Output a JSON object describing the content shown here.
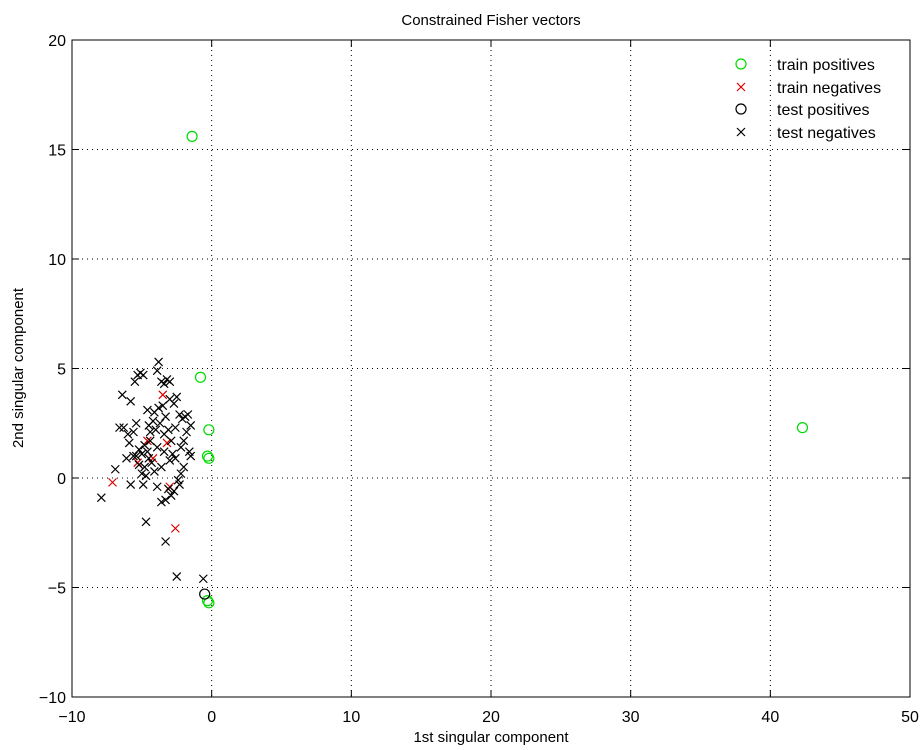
{
  "chart_data": {
    "type": "scatter",
    "title": "Constrained Fisher vectors",
    "xlabel": "1st singular component",
    "ylabel": "2nd singular component",
    "xlim": [
      -10,
      50
    ],
    "ylim": [
      -10,
      20
    ],
    "xticks": [
      -10,
      0,
      10,
      20,
      30,
      40,
      50
    ],
    "yticks": [
      -10,
      -5,
      0,
      5,
      10,
      15,
      20
    ],
    "xtick_labels": [
      "−10",
      "0",
      "10",
      "20",
      "30",
      "40",
      "50"
    ],
    "ytick_labels": [
      "−10",
      "−5",
      "0",
      "5",
      "10",
      "15",
      "20"
    ],
    "grid": true,
    "legend_position": "top-right",
    "series": [
      {
        "name": "train positives",
        "marker": "circle",
        "color": "#00dd00",
        "points": [
          [
            -1.4,
            15.6
          ],
          [
            -0.8,
            4.6
          ],
          [
            -0.2,
            2.2
          ],
          [
            -0.3,
            1.0
          ],
          [
            -0.2,
            0.9
          ],
          [
            -0.3,
            -5.6
          ],
          [
            -0.2,
            -5.7
          ],
          [
            42.3,
            2.3
          ]
        ]
      },
      {
        "name": "train negatives",
        "marker": "x",
        "color": "#dd0000",
        "points": [
          [
            -7.1,
            -0.2
          ],
          [
            -3.5,
            3.8
          ],
          [
            -4.6,
            1.7
          ],
          [
            -3.2,
            1.6
          ],
          [
            -2.6,
            -2.3
          ],
          [
            -3.0,
            -0.4
          ],
          [
            -5.3,
            0.7
          ],
          [
            -4.2,
            0.9
          ]
        ]
      },
      {
        "name": "test positives",
        "marker": "circle",
        "color": "#000000",
        "points": [
          [
            -0.5,
            -5.3
          ]
        ]
      },
      {
        "name": "test negatives",
        "marker": "x",
        "color": "#000000",
        "points": [
          [
            -7.9,
            -0.9
          ],
          [
            -6.9,
            0.4
          ],
          [
            -6.6,
            2.3
          ],
          [
            -6.3,
            2.3
          ],
          [
            -6.4,
            3.8
          ],
          [
            -6.0,
            2.0
          ],
          [
            -5.9,
            1.6
          ],
          [
            -5.8,
            3.5
          ],
          [
            -5.6,
            2.1
          ],
          [
            -5.5,
            4.4
          ],
          [
            -5.3,
            4.7
          ],
          [
            -5.1,
            4.8
          ],
          [
            -4.9,
            4.7
          ],
          [
            -5.4,
            1.0
          ],
          [
            -5.2,
            0.6
          ],
          [
            -5.0,
            0.2
          ],
          [
            -4.9,
            -0.3
          ],
          [
            -4.7,
            0.1
          ],
          [
            -4.6,
            1.2
          ],
          [
            -4.4,
            2.1
          ],
          [
            -4.2,
            2.6
          ],
          [
            -4.1,
            3.0
          ],
          [
            -3.9,
            4.9
          ],
          [
            -3.8,
            5.3
          ],
          [
            -3.6,
            4.4
          ],
          [
            -3.4,
            4.3
          ],
          [
            -3.2,
            4.5
          ],
          [
            -3.0,
            4.4
          ],
          [
            -3.8,
            3.2
          ],
          [
            -3.5,
            3.3
          ],
          [
            -3.3,
            2.8
          ],
          [
            -3.1,
            2.2
          ],
          [
            -2.9,
            1.7
          ],
          [
            -2.7,
            3.4
          ],
          [
            -2.5,
            3.7
          ],
          [
            -2.3,
            2.9
          ],
          [
            -2.1,
            2.7
          ],
          [
            -1.9,
            2.8
          ],
          [
            -1.7,
            2.9
          ],
          [
            -1.8,
            2.1
          ],
          [
            -1.6,
            1.2
          ],
          [
            -1.5,
            1.0
          ],
          [
            -2.0,
            0.5
          ],
          [
            -2.2,
            0.2
          ],
          [
            -2.4,
            -0.1
          ],
          [
            -2.7,
            -0.6
          ],
          [
            -2.9,
            -0.8
          ],
          [
            -3.1,
            -0.5
          ],
          [
            -3.3,
            -1.0
          ],
          [
            -3.6,
            -1.1
          ],
          [
            -3.9,
            -0.4
          ],
          [
            -4.1,
            0.3
          ],
          [
            -4.3,
            0.7
          ],
          [
            -4.5,
            0.9
          ],
          [
            -4.8,
            1.5
          ],
          [
            -5.0,
            1.1
          ],
          [
            -5.2,
            1.3
          ],
          [
            -5.6,
            1.0
          ],
          [
            -5.8,
            -0.3
          ],
          [
            -6.1,
            0.9
          ],
          [
            -4.7,
            -2.0
          ],
          [
            -3.3,
            -2.9
          ],
          [
            -2.5,
            -4.5
          ],
          [
            -0.6,
            -4.6
          ],
          [
            -4.4,
            1.7
          ],
          [
            -3.9,
            1.4
          ],
          [
            -3.4,
            1.2
          ],
          [
            -3.0,
            0.8
          ],
          [
            -2.6,
            0.9
          ],
          [
            -2.2,
            1.4
          ],
          [
            -2.0,
            1.7
          ],
          [
            -4.0,
            2.2
          ],
          [
            -3.7,
            2.5
          ],
          [
            -3.4,
            2.0
          ],
          [
            -4.5,
            2.4
          ],
          [
            -2.8,
            1.1
          ],
          [
            -3.6,
            0.5
          ],
          [
            -4.8,
            0.5
          ],
          [
            -2.3,
            -0.3
          ],
          [
            -5.4,
            2.5
          ],
          [
            -2.6,
            2.3
          ],
          [
            -3.0,
            3.6
          ],
          [
            -4.6,
            3.1
          ],
          [
            -1.5,
            2.4
          ]
        ]
      }
    ]
  }
}
